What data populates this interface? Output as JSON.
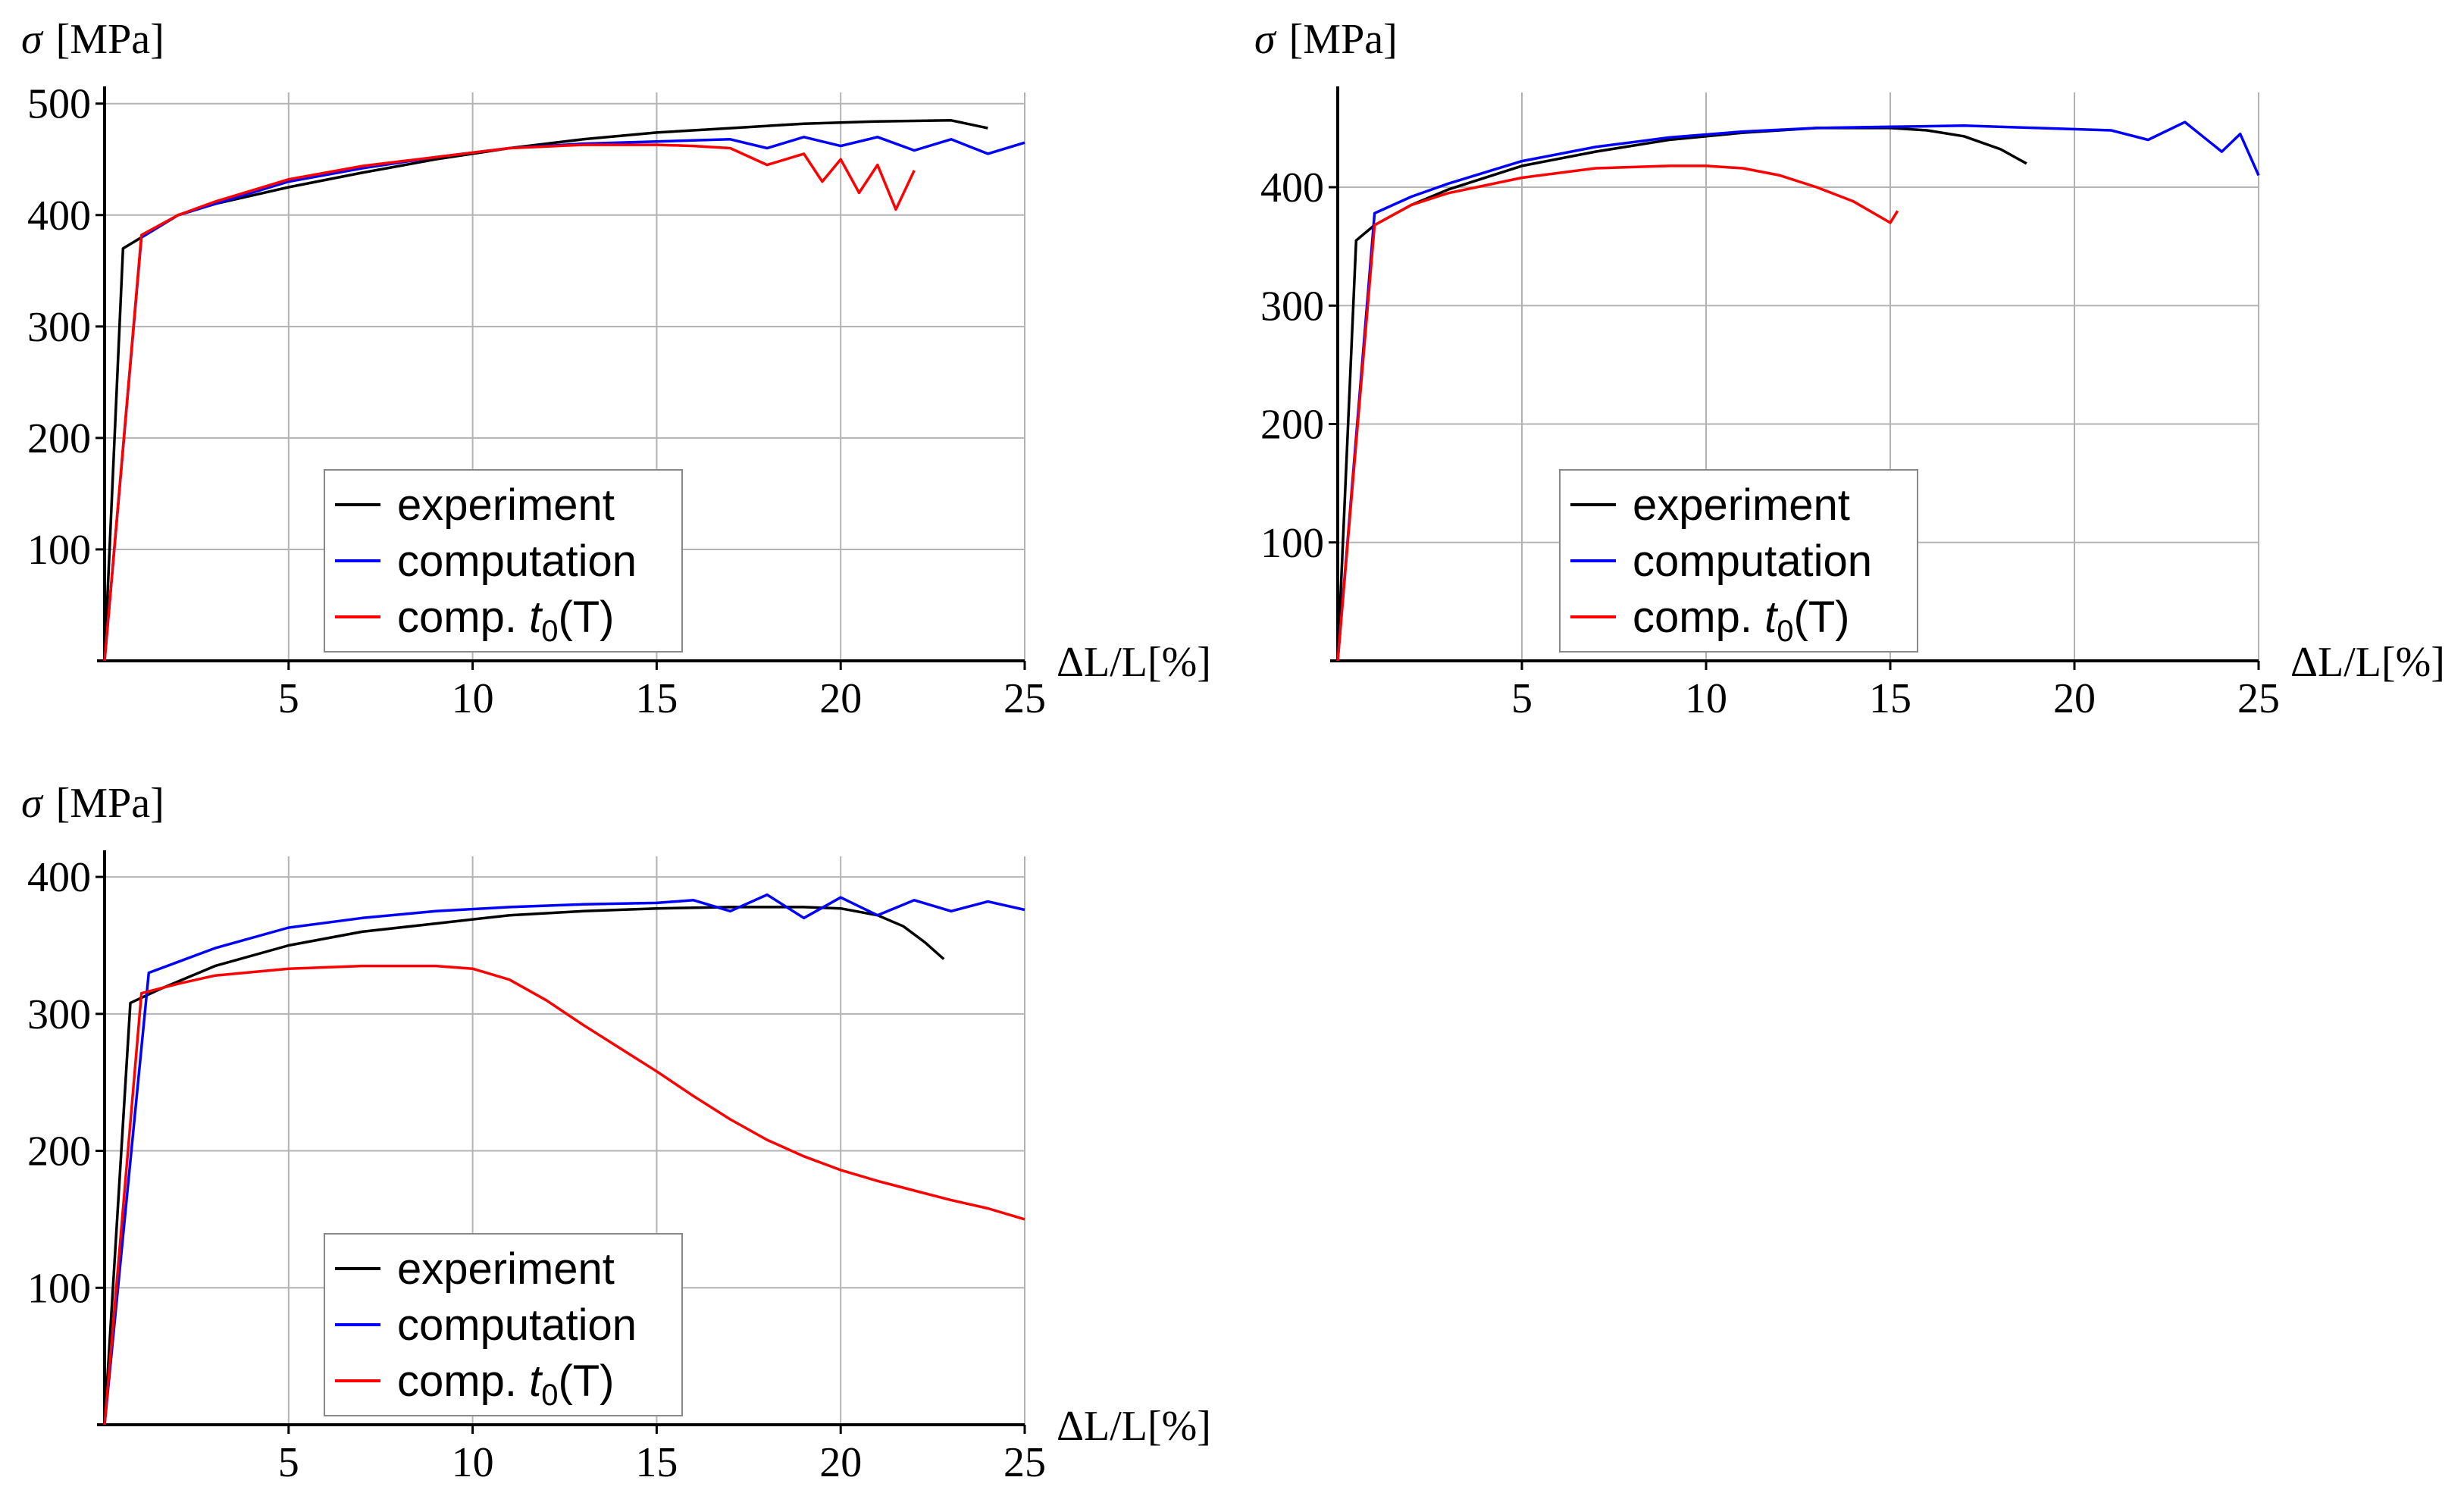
{
  "figure": {
    "y_axis_label": "σ",
    "y_axis_unit": "[MPa]",
    "x_axis_label": "ΔL/L[%]"
  },
  "legend": {
    "experiment": "experiment",
    "computation": "computation",
    "comp_prefix": "comp. ",
    "comp_var": "t",
    "comp_sub": "0",
    "comp_suffix": "(T)"
  },
  "colors": {
    "experiment": "#000000",
    "computation": "#0000ff",
    "comp_t0": "#ff0000",
    "grid": "#b3b3b3"
  },
  "chart_data": [
    {
      "type": "line",
      "panel": "top-left",
      "title": "",
      "xlabel": "ΔL/L[%]",
      "ylabel": "σ [MPa]",
      "xlim": [
        0,
        25
      ],
      "ylim": [
        0,
        510
      ],
      "xticks": [
        5,
        10,
        15,
        20,
        25
      ],
      "yticks": [
        100,
        200,
        300,
        400,
        500
      ],
      "grid": true,
      "legend_position": "bottom-center",
      "series": [
        {
          "name": "experiment",
          "key": "experiment",
          "x": [
            0,
            0.5,
            1,
            2,
            3,
            5,
            7,
            9,
            11,
            13,
            15,
            17,
            19,
            21,
            23,
            24
          ],
          "y": [
            0,
            370,
            380,
            400,
            410,
            425,
            438,
            450,
            460,
            468,
            474,
            478,
            482,
            484,
            485,
            478
          ]
        },
        {
          "name": "computation",
          "key": "computation",
          "x": [
            0,
            1,
            2,
            3,
            5,
            7,
            9,
            11,
            13,
            15,
            17,
            18,
            19,
            20,
            21,
            22,
            23,
            24,
            25
          ],
          "y": [
            0,
            380,
            400,
            410,
            430,
            442,
            452,
            460,
            464,
            466,
            468,
            460,
            470,
            462,
            470,
            458,
            468,
            455,
            465
          ]
        },
        {
          "name": "comp. t0(T)",
          "key": "comp_t0",
          "x": [
            0,
            1,
            2,
            3,
            5,
            7,
            9,
            11,
            13,
            15,
            16,
            17,
            18,
            19,
            19.5,
            20,
            20.5,
            21,
            21.5,
            22
          ],
          "y": [
            0,
            382,
            400,
            412,
            432,
            444,
            452,
            460,
            463,
            463,
            462,
            460,
            445,
            455,
            430,
            450,
            420,
            445,
            405,
            440
          ]
        }
      ]
    },
    {
      "type": "line",
      "panel": "top-right",
      "title": "",
      "xlabel": "ΔL/L[%]",
      "ylabel": "σ [MPa]",
      "xlim": [
        0,
        25
      ],
      "ylim": [
        0,
        480
      ],
      "xticks": [
        5,
        10,
        15,
        20,
        25
      ],
      "yticks": [
        100,
        200,
        300,
        400
      ],
      "grid": true,
      "legend_position": "bottom-center",
      "series": [
        {
          "name": "experiment",
          "key": "experiment",
          "x": [
            0,
            0.5,
            1,
            2,
            3,
            5,
            7,
            9,
            11,
            13,
            15,
            16,
            17,
            18,
            18.7
          ],
          "y": [
            0,
            355,
            368,
            385,
            398,
            418,
            430,
            440,
            446,
            450,
            450,
            448,
            443,
            432,
            420
          ]
        },
        {
          "name": "computation",
          "key": "computation",
          "x": [
            0,
            1,
            2,
            3,
            5,
            7,
            9,
            11,
            13,
            15,
            17,
            19,
            21,
            22,
            23,
            24,
            24.5,
            25
          ],
          "y": [
            0,
            378,
            392,
            403,
            422,
            434,
            442,
            447,
            450,
            451,
            452,
            450,
            448,
            440,
            455,
            430,
            445,
            410
          ]
        },
        {
          "name": "comp. t0(T)",
          "key": "comp_t0",
          "x": [
            0,
            1,
            2,
            3,
            5,
            7,
            9,
            10,
            11,
            12,
            13,
            14,
            15,
            15.2
          ],
          "y": [
            0,
            368,
            385,
            395,
            408,
            416,
            418,
            418,
            416,
            410,
            400,
            388,
            370,
            380
          ]
        }
      ]
    },
    {
      "type": "line",
      "panel": "bottom-left",
      "title": "",
      "xlabel": "ΔL/L[%]",
      "ylabel": "σ [MPa]",
      "xlim": [
        0,
        25
      ],
      "ylim": [
        0,
        415
      ],
      "xticks": [
        5,
        10,
        15,
        20,
        25
      ],
      "yticks": [
        100,
        200,
        300,
        400
      ],
      "grid": true,
      "legend_position": "bottom-center",
      "series": [
        {
          "name": "experiment",
          "key": "experiment",
          "x": [
            0,
            0.7,
            1.5,
            3,
            5,
            7,
            9,
            11,
            13,
            15,
            17,
            19,
            20,
            21,
            21.7,
            22.3,
            22.8
          ],
          "y": [
            0,
            308,
            318,
            335,
            350,
            360,
            366,
            372,
            375,
            377,
            378,
            378,
            377,
            372,
            364,
            352,
            340
          ]
        },
        {
          "name": "computation",
          "key": "computation",
          "x": [
            0,
            1.2,
            2,
            3,
            5,
            7,
            9,
            11,
            13,
            15,
            16,
            17,
            18,
            19,
            20,
            21,
            22,
            23,
            24,
            25
          ],
          "y": [
            0,
            330,
            338,
            348,
            363,
            370,
            375,
            378,
            380,
            381,
            383,
            375,
            387,
            370,
            385,
            372,
            383,
            375,
            382,
            376
          ]
        },
        {
          "name": "comp. t0(T)",
          "key": "comp_t0",
          "x": [
            0,
            1,
            2,
            3,
            5,
            7,
            9,
            10,
            11,
            12,
            13,
            14,
            15,
            16,
            17,
            18,
            19,
            20,
            21,
            22,
            23,
            24,
            25
          ],
          "y": [
            0,
            315,
            322,
            328,
            333,
            335,
            335,
            333,
            325,
            310,
            292,
            275,
            258,
            240,
            223,
            208,
            196,
            186,
            178,
            171,
            164,
            158,
            150
          ]
        }
      ]
    }
  ]
}
